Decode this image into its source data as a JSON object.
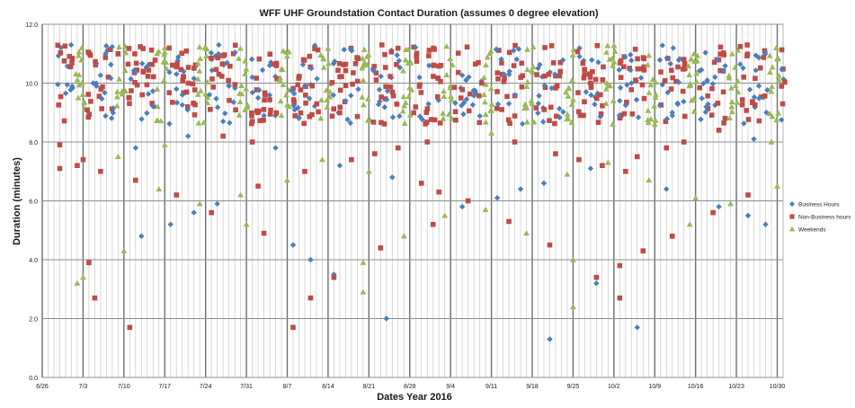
{
  "chart_data": {
    "type": "scatter",
    "title": "WFF UHF Groundstation Contact Duration (assumes 0 degree elevation)",
    "xlabel": "Dates Year 2016",
    "ylabel": "Duration (minutes)",
    "x_ticks": [
      "6/26",
      "7/3",
      "7/10",
      "7/17",
      "7/24",
      "7/31",
      "8/7",
      "8/14",
      "8/21",
      "8/28",
      "9/4",
      "9/11",
      "9/18",
      "9/25",
      "10/2",
      "10/9",
      "10/16",
      "10/23",
      "10/30"
    ],
    "xlim": [
      "2016-06-26",
      "2016-10-31"
    ],
    "ylim": [
      0,
      12
    ],
    "y_ticks": [
      "0.0",
      "2.0",
      "4.0",
      "6.0",
      "8.0",
      "10.0",
      "12.0"
    ],
    "grid": true,
    "legend_position": "right",
    "series": [
      {
        "name": "Business Hours",
        "color": "#4a7ebb",
        "marker": "diamond",
        "points": [
          [
            "2016-07-12",
            7.8
          ],
          [
            "2016-07-13",
            4.8
          ],
          [
            "2016-07-18",
            5.2
          ],
          [
            "2016-07-19",
            9.8
          ],
          [
            "2016-07-20",
            9.6
          ],
          [
            "2016-07-21",
            8.2
          ],
          [
            "2016-07-22",
            5.6
          ],
          [
            "2016-07-26",
            5.9
          ],
          [
            "2016-07-27",
            8.7
          ],
          [
            "2016-07-28",
            9.9
          ],
          [
            "2016-08-01",
            10.2
          ],
          [
            "2016-08-02",
            9.5
          ],
          [
            "2016-08-03",
            8.9
          ],
          [
            "2016-08-04",
            10.6
          ],
          [
            "2016-08-05",
            7.8
          ],
          [
            "2016-08-08",
            4.5
          ],
          [
            "2016-08-09",
            8.8
          ],
          [
            "2016-08-10",
            9.9
          ],
          [
            "2016-08-11",
            4.0
          ],
          [
            "2016-08-15",
            3.5
          ],
          [
            "2016-08-16",
            7.2
          ],
          [
            "2016-08-17",
            9.4
          ],
          [
            "2016-08-24",
            2.0
          ],
          [
            "2016-08-25",
            6.8
          ],
          [
            "2016-09-06",
            5.8
          ],
          [
            "2016-09-12",
            6.1
          ],
          [
            "2016-09-14",
            9.3
          ],
          [
            "2016-09-16",
            6.4
          ],
          [
            "2016-09-21",
            1.3
          ],
          [
            "2016-09-20",
            6.6
          ],
          [
            "2016-09-28",
            7.1
          ],
          [
            "2016-09-29",
            3.2
          ],
          [
            "2016-10-03",
            9.4
          ],
          [
            "2016-10-05",
            10.0
          ],
          [
            "2016-10-06",
            1.7
          ],
          [
            "2016-10-11",
            6.4
          ],
          [
            "2016-10-12",
            9.0
          ],
          [
            "2016-10-18",
            10.1
          ],
          [
            "2016-10-20",
            5.8
          ],
          [
            "2016-10-25",
            5.5
          ],
          [
            "2016-10-26",
            8.1
          ],
          [
            "2016-10-28",
            5.2
          ]
        ]
      },
      {
        "name": "Non-Business hours",
        "color": "#be4b48",
        "marker": "square",
        "points": [
          [
            "2016-06-29",
            7.9
          ],
          [
            "2016-06-29",
            7.1
          ],
          [
            "2016-07-02",
            7.2
          ],
          [
            "2016-07-03",
            7.4
          ],
          [
            "2016-07-04",
            3.9
          ],
          [
            "2016-07-05",
            2.7
          ],
          [
            "2016-07-06",
            7.0
          ],
          [
            "2016-07-09",
            11.0
          ],
          [
            "2016-07-11",
            1.7
          ],
          [
            "2016-07-12",
            6.7
          ],
          [
            "2016-07-19",
            6.2
          ],
          [
            "2016-07-25",
            5.6
          ],
          [
            "2016-07-27",
            8.2
          ],
          [
            "2016-08-01",
            8.0
          ],
          [
            "2016-08-02",
            6.5
          ],
          [
            "2016-08-03",
            4.9
          ],
          [
            "2016-08-08",
            1.7
          ],
          [
            "2016-08-10",
            7.0
          ],
          [
            "2016-08-11",
            2.7
          ],
          [
            "2016-08-15",
            3.4
          ],
          [
            "2016-08-18",
            7.4
          ],
          [
            "2016-08-22",
            7.6
          ],
          [
            "2016-08-23",
            4.4
          ],
          [
            "2016-08-26",
            7.8
          ],
          [
            "2016-08-30",
            6.6
          ],
          [
            "2016-08-31",
            8.0
          ],
          [
            "2016-09-01",
            5.2
          ],
          [
            "2016-09-02",
            6.3
          ],
          [
            "2016-09-07",
            6.0
          ],
          [
            "2016-09-14",
            5.3
          ],
          [
            "2016-09-15",
            8.0
          ],
          [
            "2016-09-21",
            4.5
          ],
          [
            "2016-09-22",
            7.6
          ],
          [
            "2016-09-26",
            7.4
          ],
          [
            "2016-09-29",
            3.4
          ],
          [
            "2016-09-30",
            7.2
          ],
          [
            "2016-10-03",
            3.8
          ],
          [
            "2016-10-03",
            2.7
          ],
          [
            "2016-10-04",
            7.0
          ],
          [
            "2016-10-06",
            7.5
          ],
          [
            "2016-10-07",
            4.3
          ],
          [
            "2016-10-11",
            7.8
          ],
          [
            "2016-10-12",
            4.8
          ],
          [
            "2016-10-14",
            8.0
          ],
          [
            "2016-10-19",
            5.6
          ],
          [
            "2016-10-20",
            8.4
          ],
          [
            "2016-10-25",
            6.2
          ]
        ]
      },
      {
        "name": "Weekends",
        "color": "#98b954",
        "marker": "triangle",
        "points": [
          [
            "2016-07-02",
            3.2
          ],
          [
            "2016-07-03",
            3.4
          ],
          [
            "2016-07-09",
            7.5
          ],
          [
            "2016-07-10",
            4.3
          ],
          [
            "2016-07-16",
            6.4
          ],
          [
            "2016-07-17",
            7.9
          ],
          [
            "2016-07-23",
            5.9
          ],
          [
            "2016-07-30",
            6.2
          ],
          [
            "2016-07-31",
            5.2
          ],
          [
            "2016-08-06",
            8.9
          ],
          [
            "2016-08-07",
            6.7
          ],
          [
            "2016-08-13",
            7.4
          ],
          [
            "2016-08-20",
            3.9
          ],
          [
            "2016-08-20",
            2.9
          ],
          [
            "2016-08-21",
            7.0
          ],
          [
            "2016-08-27",
            4.8
          ],
          [
            "2016-09-03",
            5.5
          ],
          [
            "2016-09-10",
            5.7
          ],
          [
            "2016-09-11",
            8.3
          ],
          [
            "2016-09-17",
            4.9
          ],
          [
            "2016-09-24",
            6.9
          ],
          [
            "2016-09-25",
            4.0
          ],
          [
            "2016-09-25",
            2.4
          ],
          [
            "2016-10-01",
            7.3
          ],
          [
            "2016-10-08",
            6.7
          ],
          [
            "2016-10-09",
            8.6
          ],
          [
            "2016-10-15",
            5.2
          ],
          [
            "2016-10-16",
            6.1
          ],
          [
            "2016-10-22",
            5.9
          ],
          [
            "2016-10-29",
            8.0
          ],
          [
            "2016-10-30",
            6.5
          ]
        ]
      }
    ],
    "dense_band": {
      "ymin": 8.6,
      "ymax": 11.3,
      "note_hidden": true
    }
  }
}
